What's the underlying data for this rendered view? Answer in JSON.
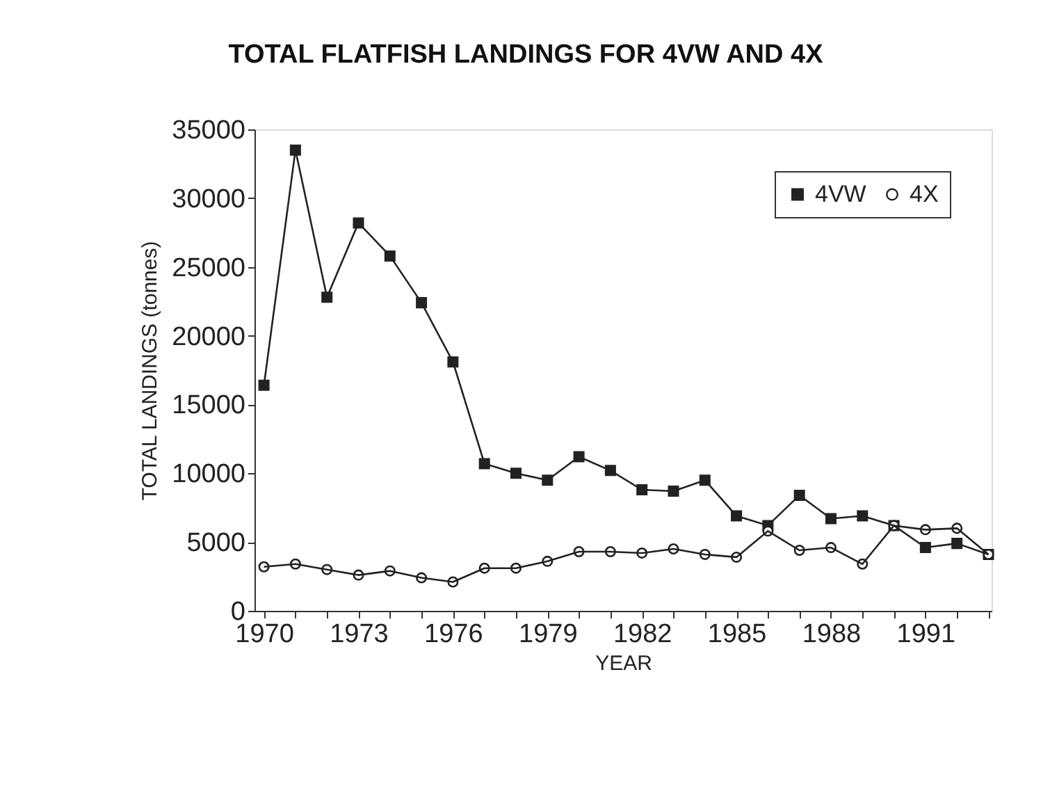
{
  "chart_data": {
    "type": "line",
    "title": "TOTAL FLATFISH LANDINGS FOR 4VW AND 4X",
    "xlabel": "YEAR",
    "ylabel": "TOTAL LANDINGS (tonnes)",
    "x": [
      1970,
      1971,
      1972,
      1973,
      1974,
      1975,
      1976,
      1977,
      1978,
      1979,
      1980,
      1981,
      1982,
      1983,
      1984,
      1985,
      1986,
      1987,
      1988,
      1989,
      1990,
      1991,
      1992,
      1993
    ],
    "series": [
      {
        "name": "4VW",
        "color": "#222222",
        "marker": "square",
        "values": [
          16400,
          33500,
          22800,
          28200,
          25800,
          22400,
          18100,
          10700,
          10000,
          9500,
          11200,
          10200,
          8800,
          8700,
          9500,
          6900,
          6200,
          8400,
          6700,
          6900,
          6200,
          4600,
          4900,
          4100
        ]
      },
      {
        "name": "4X",
        "color": "#222222",
        "marker": "circle",
        "values": [
          3200,
          3400,
          3000,
          2600,
          2900,
          2400,
          2100,
          3100,
          3100,
          3600,
          4300,
          4300,
          4200,
          4500,
          4100,
          3900,
          5800,
          4400,
          4600,
          3400,
          6200,
          5900,
          6000,
          4100
        ]
      }
    ],
    "xlim": [
      1969.7,
      1993.1
    ],
    "xticks": [
      1970,
      {
        "value": 1971,
        "label": null
      },
      {
        "value": 1972,
        "label": null
      },
      1973,
      {
        "value": 1974,
        "label": null
      },
      {
        "value": 1975,
        "label": null
      },
      1976,
      {
        "value": 1977,
        "label": null
      },
      {
        "value": 1978,
        "label": null
      },
      1979,
      {
        "value": 1980,
        "label": null
      },
      {
        "value": 1981,
        "label": null
      },
      1982,
      {
        "value": 1983,
        "label": null
      },
      {
        "value": 1984,
        "label": null
      },
      1985,
      {
        "value": 1986,
        "label": null
      },
      {
        "value": 1987,
        "label": null
      },
      1988,
      {
        "value": 1989,
        "label": null
      },
      {
        "value": 1990,
        "label": null
      },
      1991,
      {
        "value": 1992,
        "label": null
      },
      {
        "value": 1993,
        "label": null
      }
    ],
    "ylim": [
      0,
      35000
    ],
    "yticks": [
      0,
      5000,
      10000,
      15000,
      20000,
      25000,
      30000,
      35000
    ],
    "grid": false,
    "legend": "top right",
    "line_style": "solid"
  }
}
